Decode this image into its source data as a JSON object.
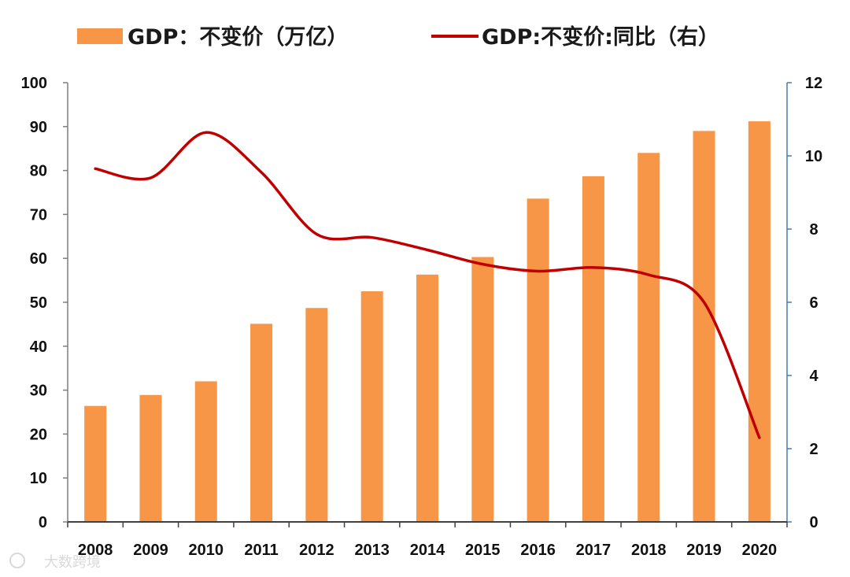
{
  "chart_data": {
    "type": "bar+line",
    "categories": [
      "2008",
      "2009",
      "2010",
      "2011",
      "2012",
      "2013",
      "2014",
      "2015",
      "2016",
      "2017",
      "2018",
      "2019",
      "2020"
    ],
    "series": [
      {
        "name": "GDP：不变价（万亿）",
        "type": "bar",
        "axis": "left",
        "color": "#f79646",
        "values": [
          26.4,
          28.9,
          32.0,
          45.1,
          48.7,
          52.5,
          56.3,
          60.3,
          73.6,
          78.7,
          84.0,
          89.0,
          91.2
        ]
      },
      {
        "name": "GDP:不变价:同比（右）",
        "type": "line",
        "axis": "right",
        "color": "#c00000",
        "values": [
          9.65,
          9.4,
          10.64,
          9.55,
          7.86,
          7.77,
          7.43,
          7.04,
          6.85,
          6.95,
          6.75,
          6.0,
          2.3
        ]
      }
    ],
    "y_left": {
      "min": 0,
      "max": 100,
      "ticks": [
        0,
        10,
        20,
        30,
        40,
        50,
        60,
        70,
        80,
        90,
        100
      ]
    },
    "y_right": {
      "min": 0,
      "max": 12,
      "ticks": [
        0,
        2,
        4,
        6,
        8,
        10,
        12
      ]
    },
    "legend_position": "top"
  },
  "watermark": "大数跨境"
}
